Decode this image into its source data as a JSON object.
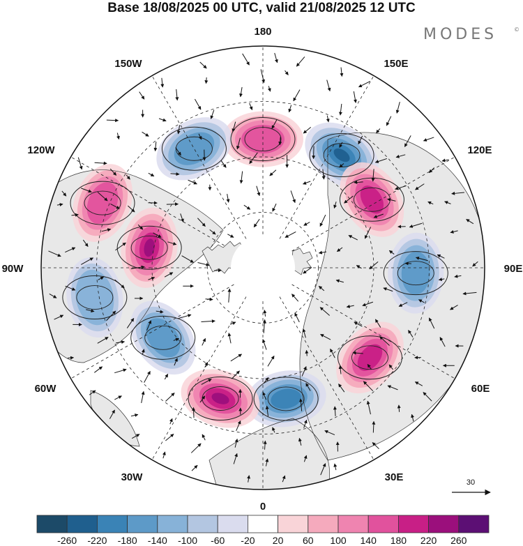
{
  "title": "Base 18/08/2025 00 UTC, valid 21/08/2025 12 UTC",
  "brand": "MODES",
  "brand_mark": "©",
  "longitude_labels": [
    {
      "name": "lon-label-180",
      "text": "180"
    },
    {
      "name": "lon-label-150e",
      "text": "150E"
    },
    {
      "name": "lon-label-120e",
      "text": "120E"
    },
    {
      "name": "lon-label-90e",
      "text": "90E"
    },
    {
      "name": "lon-label-60e",
      "text": "60E"
    },
    {
      "name": "lon-label-30e",
      "text": "30E"
    },
    {
      "name": "lon-label-0",
      "text": "0"
    },
    {
      "name": "lon-label-30w",
      "text": "30W"
    },
    {
      "name": "lon-label-60w",
      "text": "60W"
    },
    {
      "name": "lon-label-90w",
      "text": "90W"
    },
    {
      "name": "lon-label-120w",
      "text": "120W"
    },
    {
      "name": "lon-label-150w",
      "text": "150W"
    }
  ],
  "reference_vector": "30",
  "colorbar": {
    "ticks": [
      "-260",
      "-220",
      "-180",
      "-140",
      "-100",
      "-60",
      "-20",
      "20",
      "60",
      "100",
      "140",
      "180",
      "220",
      "260"
    ],
    "colors": [
      "#1c4a68",
      "#1f5f8e",
      "#3a83b6",
      "#5d9ac8",
      "#87b2d8",
      "#b3c6e1",
      "#dadcee",
      "#ffffff",
      "#f9d4d8",
      "#f5aabd",
      "#ef84b0",
      "#e1529d",
      "#c81f86",
      "#9b0f7c",
      "#5c0f74"
    ]
  },
  "anomaly_field": [
    {
      "sign": "pos",
      "intensity": 2,
      "lon": 180,
      "rfrac": 0.58
    },
    {
      "sign": "neg",
      "intensity": 4,
      "lon": 145,
      "rfrac": 0.62
    },
    {
      "sign": "pos",
      "intensity": 3,
      "lon": 122,
      "rfrac": 0.58
    },
    {
      "sign": "neg",
      "intensity": 2,
      "lon": 88,
      "rfrac": 0.69
    },
    {
      "sign": "pos",
      "intensity": 3,
      "lon": 50,
      "rfrac": 0.63
    },
    {
      "sign": "neg",
      "intensity": 3,
      "lon": 10,
      "rfrac": 0.6
    },
    {
      "sign": "pos",
      "intensity": 4,
      "lon": -18,
      "rfrac": 0.62
    },
    {
      "sign": "neg",
      "intensity": 2,
      "lon": -55,
      "rfrac": 0.55
    },
    {
      "sign": "pos",
      "intensity": 4,
      "lon": -100,
      "rfrac": 0.52
    },
    {
      "sign": "pos",
      "intensity": 2,
      "lon": -112,
      "rfrac": 0.78
    },
    {
      "sign": "neg",
      "intensity": 2,
      "lon": -150,
      "rfrac": 0.62
    },
    {
      "sign": "neg",
      "intensity": 1,
      "lon": -80,
      "rfrac": 0.77
    }
  ]
}
